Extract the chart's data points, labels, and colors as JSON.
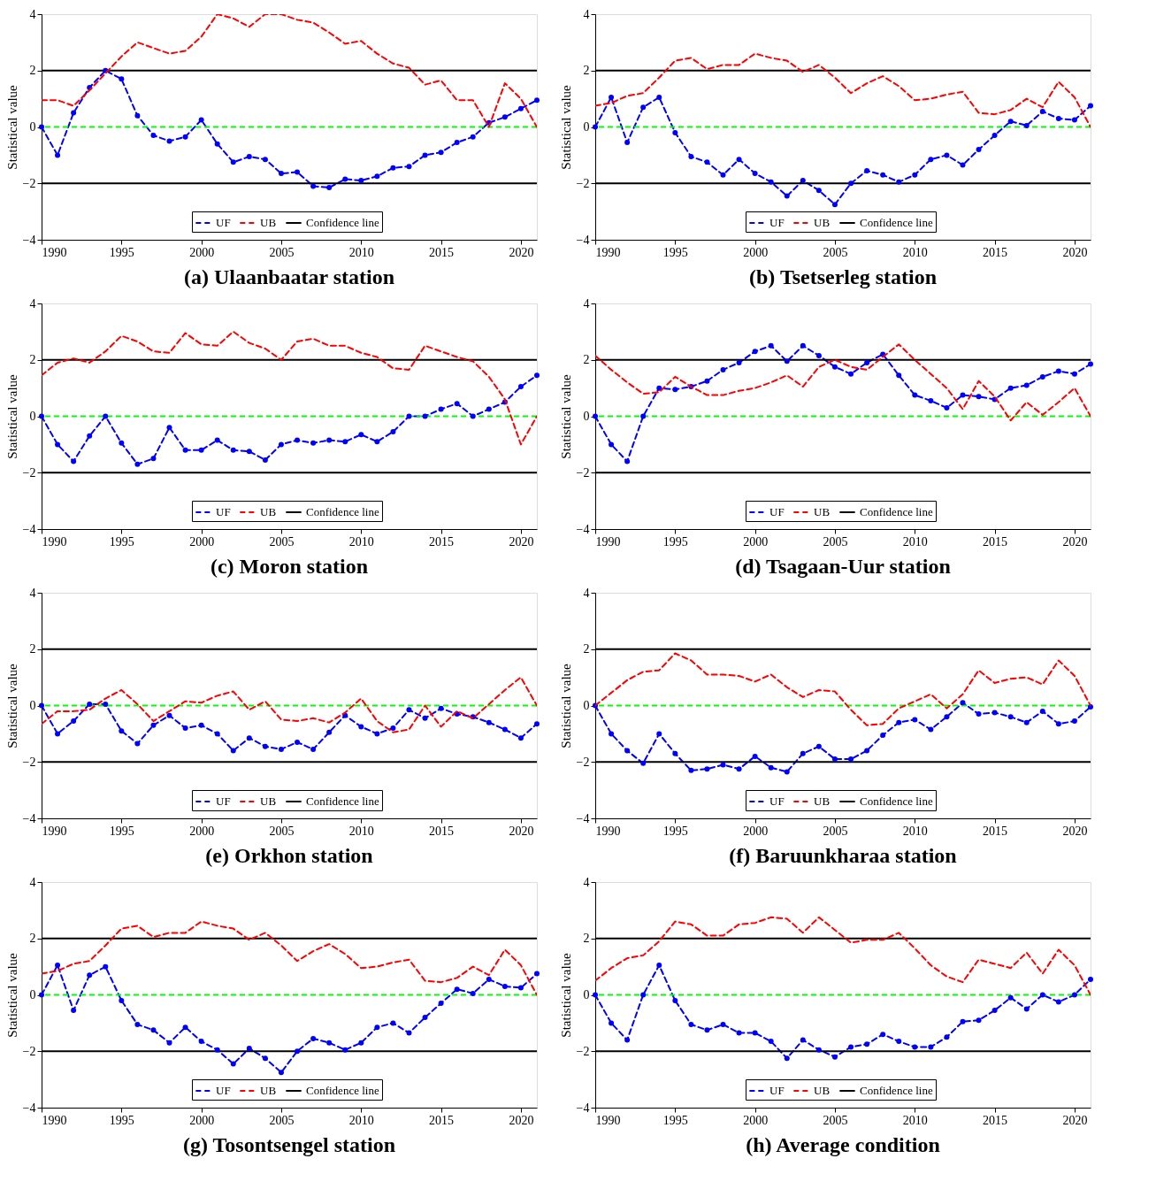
{
  "chart_data": [
    {
      "type": "line",
      "title": "(a) Ulaanbaatar station",
      "ylabel": "Statistical value",
      "x": [
        1990,
        1991,
        1992,
        1993,
        1994,
        1995,
        1996,
        1997,
        1998,
        1999,
        2000,
        2001,
        2002,
        2003,
        2004,
        2005,
        2006,
        2007,
        2008,
        2009,
        2010,
        2011,
        2012,
        2013,
        2014,
        2015,
        2016,
        2017,
        2018,
        2019,
        2020,
        2021
      ],
      "xlim": [
        1990,
        2021
      ],
      "xticks": [
        1990,
        1995,
        2000,
        2005,
        2010,
        2015,
        2020
      ],
      "ylim": [
        -4,
        4
      ],
      "yticks": [
        -4,
        -2,
        0,
        2,
        4
      ],
      "grid": false,
      "legend": "bottom",
      "series": [
        {
          "name": "UF",
          "color": "#0000ff",
          "marker": "circle",
          "line_style": "dashed",
          "values": [
            0,
            -1.0,
            0.5,
            1.4,
            2.0,
            1.7,
            0.4,
            -0.3,
            -0.5,
            -0.35,
            0.25,
            -0.6,
            -1.25,
            -1.05,
            -1.15,
            -1.65,
            -1.6,
            -2.1,
            -2.15,
            -1.85,
            -1.9,
            -1.75,
            -1.45,
            -1.4,
            -1.0,
            -0.9,
            -0.55,
            -0.35,
            0.15,
            0.35,
            0.65,
            0.95
          ]
        },
        {
          "name": "UB",
          "color": "#ff0000",
          "marker": "none",
          "line_style": "dashed",
          "values": [
            0.95,
            0.95,
            0.75,
            1.3,
            1.9,
            2.5,
            3.0,
            2.8,
            2.6,
            2.7,
            3.2,
            4.0,
            3.85,
            3.55,
            4.0,
            4.0,
            3.8,
            3.7,
            3.35,
            2.95,
            3.05,
            2.6,
            2.25,
            2.1,
            1.5,
            1.65,
            0.95,
            0.95,
            0.0,
            1.55,
            1.0,
            0
          ]
        }
      ],
      "ref_lines": [
        {
          "axis": "y",
          "value": 2,
          "label": "Confidence line",
          "color": "#000000",
          "line_style": "solid"
        },
        {
          "axis": "y",
          "value": -2,
          "color": "#000000",
          "line_style": "solid"
        },
        {
          "axis": "y",
          "value": 0,
          "color": "#00ff00",
          "line_style": "dashed"
        }
      ]
    },
    {
      "type": "line",
      "title": "(b) Tsetserleg station",
      "ylabel": "Statistical value",
      "x": [
        1990,
        1991,
        1992,
        1993,
        1994,
        1995,
        1996,
        1997,
        1998,
        1999,
        2000,
        2001,
        2002,
        2003,
        2004,
        2005,
        2006,
        2007,
        2008,
        2009,
        2010,
        2011,
        2012,
        2013,
        2014,
        2015,
        2016,
        2017,
        2018,
        2019,
        2020,
        2021
      ],
      "xlim": [
        1990,
        2021
      ],
      "xticks": [
        1990,
        1995,
        2000,
        2005,
        2010,
        2015,
        2020
      ],
      "ylim": [
        -4,
        4
      ],
      "yticks": [
        -4,
        -2,
        0,
        2,
        4
      ],
      "grid": false,
      "legend": "bottom",
      "series": [
        {
          "name": "UF",
          "color": "#0000ff",
          "marker": "circle",
          "line_style": "dashed",
          "values": [
            0,
            1.05,
            -0.55,
            0.7,
            1.05,
            -0.2,
            -1.05,
            -1.25,
            -1.7,
            -1.15,
            -1.65,
            -1.95,
            -2.45,
            -1.9,
            -2.25,
            -2.75,
            -2.0,
            -1.55,
            -1.7,
            -1.95,
            -1.7,
            -1.15,
            -1.0,
            -1.35,
            -0.8,
            -0.3,
            0.2,
            0.05,
            0.55,
            0.3,
            0.25,
            0.75
          ]
        },
        {
          "name": "UB",
          "color": "#ff0000",
          "marker": "none",
          "line_style": "dashed",
          "values": [
            0.75,
            0.85,
            1.1,
            1.2,
            1.75,
            2.35,
            2.45,
            2.05,
            2.2,
            2.2,
            2.6,
            2.45,
            2.35,
            1.95,
            2.2,
            1.75,
            1.2,
            1.55,
            1.8,
            1.45,
            0.95,
            1.0,
            1.15,
            1.25,
            0.5,
            0.45,
            0.6,
            1.0,
            0.7,
            1.6,
            1.05,
            0
          ]
        }
      ],
      "ref_lines": [
        {
          "axis": "y",
          "value": 2,
          "label": "Confidence line",
          "color": "#000000",
          "line_style": "solid"
        },
        {
          "axis": "y",
          "value": -2,
          "color": "#000000",
          "line_style": "solid"
        },
        {
          "axis": "y",
          "value": 0,
          "color": "#00ff00",
          "line_style": "dashed"
        }
      ]
    },
    {
      "type": "line",
      "title": "(c) Moron station",
      "ylabel": "Statistical value",
      "x": [
        1990,
        1991,
        1992,
        1993,
        1994,
        1995,
        1996,
        1997,
        1998,
        1999,
        2000,
        2001,
        2002,
        2003,
        2004,
        2005,
        2006,
        2007,
        2008,
        2009,
        2010,
        2011,
        2012,
        2013,
        2014,
        2015,
        2016,
        2017,
        2018,
        2019,
        2020,
        2021
      ],
      "xlim": [
        1990,
        2021
      ],
      "xticks": [
        1990,
        1995,
        2000,
        2005,
        2010,
        2015,
        2020
      ],
      "ylim": [
        -4,
        4
      ],
      "yticks": [
        -4,
        -2,
        0,
        2,
        4
      ],
      "grid": false,
      "legend": "bottom",
      "series": [
        {
          "name": "UF",
          "color": "#0000ff",
          "marker": "circle",
          "line_style": "dashed",
          "values": [
            0,
            -1.0,
            -1.6,
            -0.7,
            0.0,
            -0.95,
            -1.7,
            -1.5,
            -0.4,
            -1.2,
            -1.2,
            -0.85,
            -1.2,
            -1.25,
            -1.55,
            -1.0,
            -0.85,
            -0.95,
            -0.85,
            -0.9,
            -0.65,
            -0.9,
            -0.55,
            0.0,
            0.0,
            0.25,
            0.45,
            0.0,
            0.25,
            0.5,
            1.05,
            1.45
          ]
        },
        {
          "name": "UB",
          "color": "#ff0000",
          "marker": "none",
          "line_style": "dashed",
          "values": [
            1.45,
            1.9,
            2.05,
            1.9,
            2.3,
            2.85,
            2.65,
            2.3,
            2.25,
            2.95,
            2.55,
            2.5,
            3.0,
            2.6,
            2.4,
            2.0,
            2.65,
            2.75,
            2.5,
            2.5,
            2.25,
            2.1,
            1.7,
            1.65,
            2.5,
            2.3,
            2.1,
            1.95,
            1.4,
            0.6,
            -1.0,
            0
          ]
        }
      ],
      "ref_lines": [
        {
          "axis": "y",
          "value": 2,
          "label": "Confidence line",
          "color": "#000000",
          "line_style": "solid"
        },
        {
          "axis": "y",
          "value": -2,
          "color": "#000000",
          "line_style": "solid"
        },
        {
          "axis": "y",
          "value": 0,
          "color": "#00ff00",
          "line_style": "dashed"
        }
      ]
    },
    {
      "type": "line",
      "title": "(d) Tsagaan-Uur station",
      "ylabel": "Statistical value",
      "x": [
        1990,
        1991,
        1992,
        1993,
        1994,
        1995,
        1996,
        1997,
        1998,
        1999,
        2000,
        2001,
        2002,
        2003,
        2004,
        2005,
        2006,
        2007,
        2008,
        2009,
        2010,
        2011,
        2012,
        2013,
        2014,
        2015,
        2016,
        2017,
        2018,
        2019,
        2020,
        2021
      ],
      "xlim": [
        1990,
        2021
      ],
      "xticks": [
        1990,
        1995,
        2000,
        2005,
        2010,
        2015,
        2020
      ],
      "ylim": [
        -4,
        4
      ],
      "yticks": [
        -4,
        -2,
        0,
        2,
        4
      ],
      "grid": false,
      "legend": "bottom",
      "series": [
        {
          "name": "UF",
          "color": "#0000ff",
          "marker": "circle",
          "line_style": "dashed",
          "values": [
            0,
            -1.0,
            -1.6,
            0.0,
            1.0,
            0.95,
            1.05,
            1.25,
            1.65,
            1.9,
            2.3,
            2.5,
            1.95,
            2.5,
            2.15,
            1.75,
            1.5,
            1.9,
            2.2,
            1.45,
            0.75,
            0.55,
            0.3,
            0.75,
            0.7,
            0.6,
            1.0,
            1.1,
            1.4,
            1.6,
            1.5,
            1.85
          ]
        },
        {
          "name": "UB",
          "color": "#ff0000",
          "marker": "none",
          "line_style": "dashed",
          "values": [
            2.15,
            1.65,
            1.2,
            0.8,
            0.85,
            1.4,
            1.05,
            0.75,
            0.75,
            0.9,
            1.0,
            1.2,
            1.45,
            1.05,
            1.75,
            2.0,
            1.75,
            1.65,
            2.1,
            2.55,
            2.0,
            1.5,
            1.0,
            0.25,
            1.25,
            0.7,
            -0.15,
            0.5,
            0.05,
            0.5,
            1.0,
            0
          ]
        }
      ],
      "ref_lines": [
        {
          "axis": "y",
          "value": 2,
          "label": "Confidence line",
          "color": "#000000",
          "line_style": "solid"
        },
        {
          "axis": "y",
          "value": -2,
          "color": "#000000",
          "line_style": "solid"
        },
        {
          "axis": "y",
          "value": 0,
          "color": "#00ff00",
          "line_style": "dashed"
        }
      ]
    },
    {
      "type": "line",
      "title": "(e) Orkhon station",
      "ylabel": "Statistical value",
      "x": [
        1990,
        1991,
        1992,
        1993,
        1994,
        1995,
        1996,
        1997,
        1998,
        1999,
        2000,
        2001,
        2002,
        2003,
        2004,
        2005,
        2006,
        2007,
        2008,
        2009,
        2010,
        2011,
        2012,
        2013,
        2014,
        2015,
        2016,
        2017,
        2018,
        2019,
        2020,
        2021
      ],
      "xlim": [
        1990,
        2021
      ],
      "xticks": [
        1990,
        1995,
        2000,
        2005,
        2010,
        2015,
        2020
      ],
      "ylim": [
        -4,
        4
      ],
      "yticks": [
        -4,
        -2,
        0,
        2,
        4
      ],
      "grid": false,
      "legend": "bottom",
      "series": [
        {
          "name": "UF",
          "color": "#0000ff",
          "marker": "circle",
          "line_style": "dashed",
          "values": [
            0,
            -1.0,
            -0.55,
            0.05,
            0.05,
            -0.9,
            -1.35,
            -0.7,
            -0.35,
            -0.8,
            -0.7,
            -1.0,
            -1.6,
            -1.15,
            -1.45,
            -1.55,
            -1.3,
            -1.55,
            -0.95,
            -0.35,
            -0.75,
            -1.0,
            -0.8,
            -0.15,
            -0.45,
            -0.1,
            -0.3,
            -0.4,
            -0.6,
            -0.85,
            -1.15,
            -0.65
          ]
        },
        {
          "name": "UB",
          "color": "#ff0000",
          "marker": "none",
          "line_style": "dashed",
          "values": [
            -0.65,
            -0.2,
            -0.2,
            -0.15,
            0.25,
            0.55,
            0.05,
            -0.55,
            -0.2,
            0.15,
            0.1,
            0.35,
            0.5,
            -0.15,
            0.15,
            -0.5,
            -0.55,
            -0.45,
            -0.6,
            -0.25,
            0.25,
            -0.55,
            -0.95,
            -0.85,
            0.0,
            -0.75,
            -0.2,
            -0.45,
            0.05,
            0.55,
            1.0,
            0
          ]
        }
      ],
      "ref_lines": [
        {
          "axis": "y",
          "value": 2,
          "label": "Confidence line",
          "color": "#000000",
          "line_style": "solid"
        },
        {
          "axis": "y",
          "value": -2,
          "color": "#000000",
          "line_style": "solid"
        },
        {
          "axis": "y",
          "value": 0,
          "color": "#00ff00",
          "line_style": "dashed"
        }
      ]
    },
    {
      "type": "line",
      "title": "(f) Baruunkharaa station",
      "ylabel": "Statistical value",
      "x": [
        1990,
        1991,
        1992,
        1993,
        1994,
        1995,
        1996,
        1997,
        1998,
        1999,
        2000,
        2001,
        2002,
        2003,
        2004,
        2005,
        2006,
        2007,
        2008,
        2009,
        2010,
        2011,
        2012,
        2013,
        2014,
        2015,
        2016,
        2017,
        2018,
        2019,
        2020,
        2021
      ],
      "xlim": [
        1990,
        2021
      ],
      "xticks": [
        1990,
        1995,
        2000,
        2005,
        2010,
        2015,
        2020
      ],
      "ylim": [
        -4,
        4
      ],
      "yticks": [
        -4,
        -2,
        0,
        2,
        4
      ],
      "grid": false,
      "legend": "bottom",
      "series": [
        {
          "name": "UF",
          "color": "#0000ff",
          "marker": "circle",
          "line_style": "dashed",
          "values": [
            0,
            -1.0,
            -1.6,
            -2.05,
            -1.0,
            -1.7,
            -2.3,
            -2.25,
            -2.1,
            -2.25,
            -1.8,
            -2.2,
            -2.35,
            -1.7,
            -1.45,
            -1.9,
            -1.9,
            -1.6,
            -1.05,
            -0.6,
            -0.5,
            -0.85,
            -0.4,
            0.1,
            -0.3,
            -0.25,
            -0.4,
            -0.6,
            -0.2,
            -0.65,
            -0.55,
            -0.05
          ]
        },
        {
          "name": "UB",
          "color": "#ff0000",
          "marker": "none",
          "line_style": "dashed",
          "values": [
            0,
            0.45,
            0.9,
            1.2,
            1.25,
            1.85,
            1.6,
            1.1,
            1.1,
            1.05,
            0.85,
            1.1,
            0.65,
            0.3,
            0.55,
            0.5,
            -0.15,
            -0.7,
            -0.65,
            -0.1,
            0.15,
            0.4,
            -0.1,
            0.4,
            1.25,
            0.8,
            0.95,
            1.0,
            0.75,
            1.6,
            1.05,
            0
          ]
        }
      ],
      "ref_lines": [
        {
          "axis": "y",
          "value": 2,
          "label": "Confidence line",
          "color": "#000000",
          "line_style": "solid"
        },
        {
          "axis": "y",
          "value": -2,
          "color": "#000000",
          "line_style": "solid"
        },
        {
          "axis": "y",
          "value": 0,
          "color": "#00ff00",
          "line_style": "dashed"
        }
      ]
    },
    {
      "type": "line",
      "title": "(g) Tosontsengel station",
      "ylabel": "Statistical value",
      "x": [
        1990,
        1991,
        1992,
        1993,
        1994,
        1995,
        1996,
        1997,
        1998,
        1999,
        2000,
        2001,
        2002,
        2003,
        2004,
        2005,
        2006,
        2007,
        2008,
        2009,
        2010,
        2011,
        2012,
        2013,
        2014,
        2015,
        2016,
        2017,
        2018,
        2019,
        2020,
        2021
      ],
      "xlim": [
        1990,
        2021
      ],
      "xticks": [
        1990,
        1995,
        2000,
        2005,
        2010,
        2015,
        2020
      ],
      "ylim": [
        -4,
        4
      ],
      "yticks": [
        -4,
        -2,
        0,
        2,
        4
      ],
      "grid": false,
      "legend": "bottom",
      "series": [
        {
          "name": "UF",
          "color": "#0000ff",
          "marker": "circle",
          "line_style": "dashed",
          "values": [
            0,
            1.05,
            -0.55,
            0.7,
            1.0,
            -0.2,
            -1.05,
            -1.25,
            -1.7,
            -1.15,
            -1.65,
            -1.95,
            -2.45,
            -1.9,
            -2.25,
            -2.75,
            -2.0,
            -1.55,
            -1.7,
            -1.95,
            -1.7,
            -1.15,
            -1.0,
            -1.35,
            -0.8,
            -0.3,
            0.2,
            0.05,
            0.55,
            0.3,
            0.25,
            0.75
          ]
        },
        {
          "name": "UB",
          "color": "#ff0000",
          "marker": "none",
          "line_style": "dashed",
          "values": [
            0.75,
            0.85,
            1.1,
            1.2,
            1.75,
            2.35,
            2.45,
            2.05,
            2.2,
            2.2,
            2.6,
            2.45,
            2.35,
            1.95,
            2.2,
            1.75,
            1.2,
            1.55,
            1.8,
            1.45,
            0.95,
            1.0,
            1.15,
            1.25,
            0.5,
            0.45,
            0.6,
            1.0,
            0.7,
            1.6,
            1.05,
            0
          ]
        }
      ],
      "ref_lines": [
        {
          "axis": "y",
          "value": 2,
          "label": "Confidence line",
          "color": "#000000",
          "line_style": "solid"
        },
        {
          "axis": "y",
          "value": -2,
          "color": "#000000",
          "line_style": "solid"
        },
        {
          "axis": "y",
          "value": 0,
          "color": "#00ff00",
          "line_style": "dashed"
        }
      ]
    },
    {
      "type": "line",
      "title": "(h) Average condition",
      "ylabel": "Statistical value",
      "x": [
        1990,
        1991,
        1992,
        1993,
        1994,
        1995,
        1996,
        1997,
        1998,
        1999,
        2000,
        2001,
        2002,
        2003,
        2004,
        2005,
        2006,
        2007,
        2008,
        2009,
        2010,
        2011,
        2012,
        2013,
        2014,
        2015,
        2016,
        2017,
        2018,
        2019,
        2020,
        2021
      ],
      "xlim": [
        1990,
        2021
      ],
      "xticks": [
        1990,
        1995,
        2000,
        2005,
        2010,
        2015,
        2020
      ],
      "ylim": [
        -4,
        4
      ],
      "yticks": [
        -4,
        -2,
        0,
        2,
        4
      ],
      "grid": false,
      "legend": "bottom",
      "series": [
        {
          "name": "UF",
          "color": "#0000ff",
          "marker": "circle",
          "line_style": "dashed",
          "values": [
            0,
            -1.0,
            -1.6,
            0.0,
            1.05,
            -0.2,
            -1.05,
            -1.25,
            -1.05,
            -1.35,
            -1.35,
            -1.65,
            -2.25,
            -1.6,
            -1.95,
            -2.2,
            -1.85,
            -1.75,
            -1.4,
            -1.65,
            -1.85,
            -1.85,
            -1.5,
            -0.95,
            -0.9,
            -0.55,
            -0.1,
            -0.5,
            0.0,
            -0.25,
            0.0,
            0.55
          ]
        },
        {
          "name": "UB",
          "color": "#ff0000",
          "marker": "none",
          "line_style": "dashed",
          "values": [
            0.5,
            0.95,
            1.3,
            1.4,
            1.9,
            2.6,
            2.5,
            2.1,
            2.1,
            2.5,
            2.55,
            2.75,
            2.7,
            2.2,
            2.75,
            2.3,
            1.85,
            1.95,
            1.95,
            2.2,
            1.65,
            1.05,
            0.65,
            0.45,
            1.25,
            1.1,
            0.95,
            1.5,
            0.75,
            1.6,
            1.05,
            0
          ]
        }
      ],
      "ref_lines": [
        {
          "axis": "y",
          "value": 2,
          "label": "Confidence line",
          "color": "#000000",
          "line_style": "solid"
        },
        {
          "axis": "y",
          "value": -2,
          "color": "#000000",
          "line_style": "solid"
        },
        {
          "axis": "y",
          "value": 0,
          "color": "#00ff00",
          "line_style": "dashed"
        }
      ]
    }
  ]
}
